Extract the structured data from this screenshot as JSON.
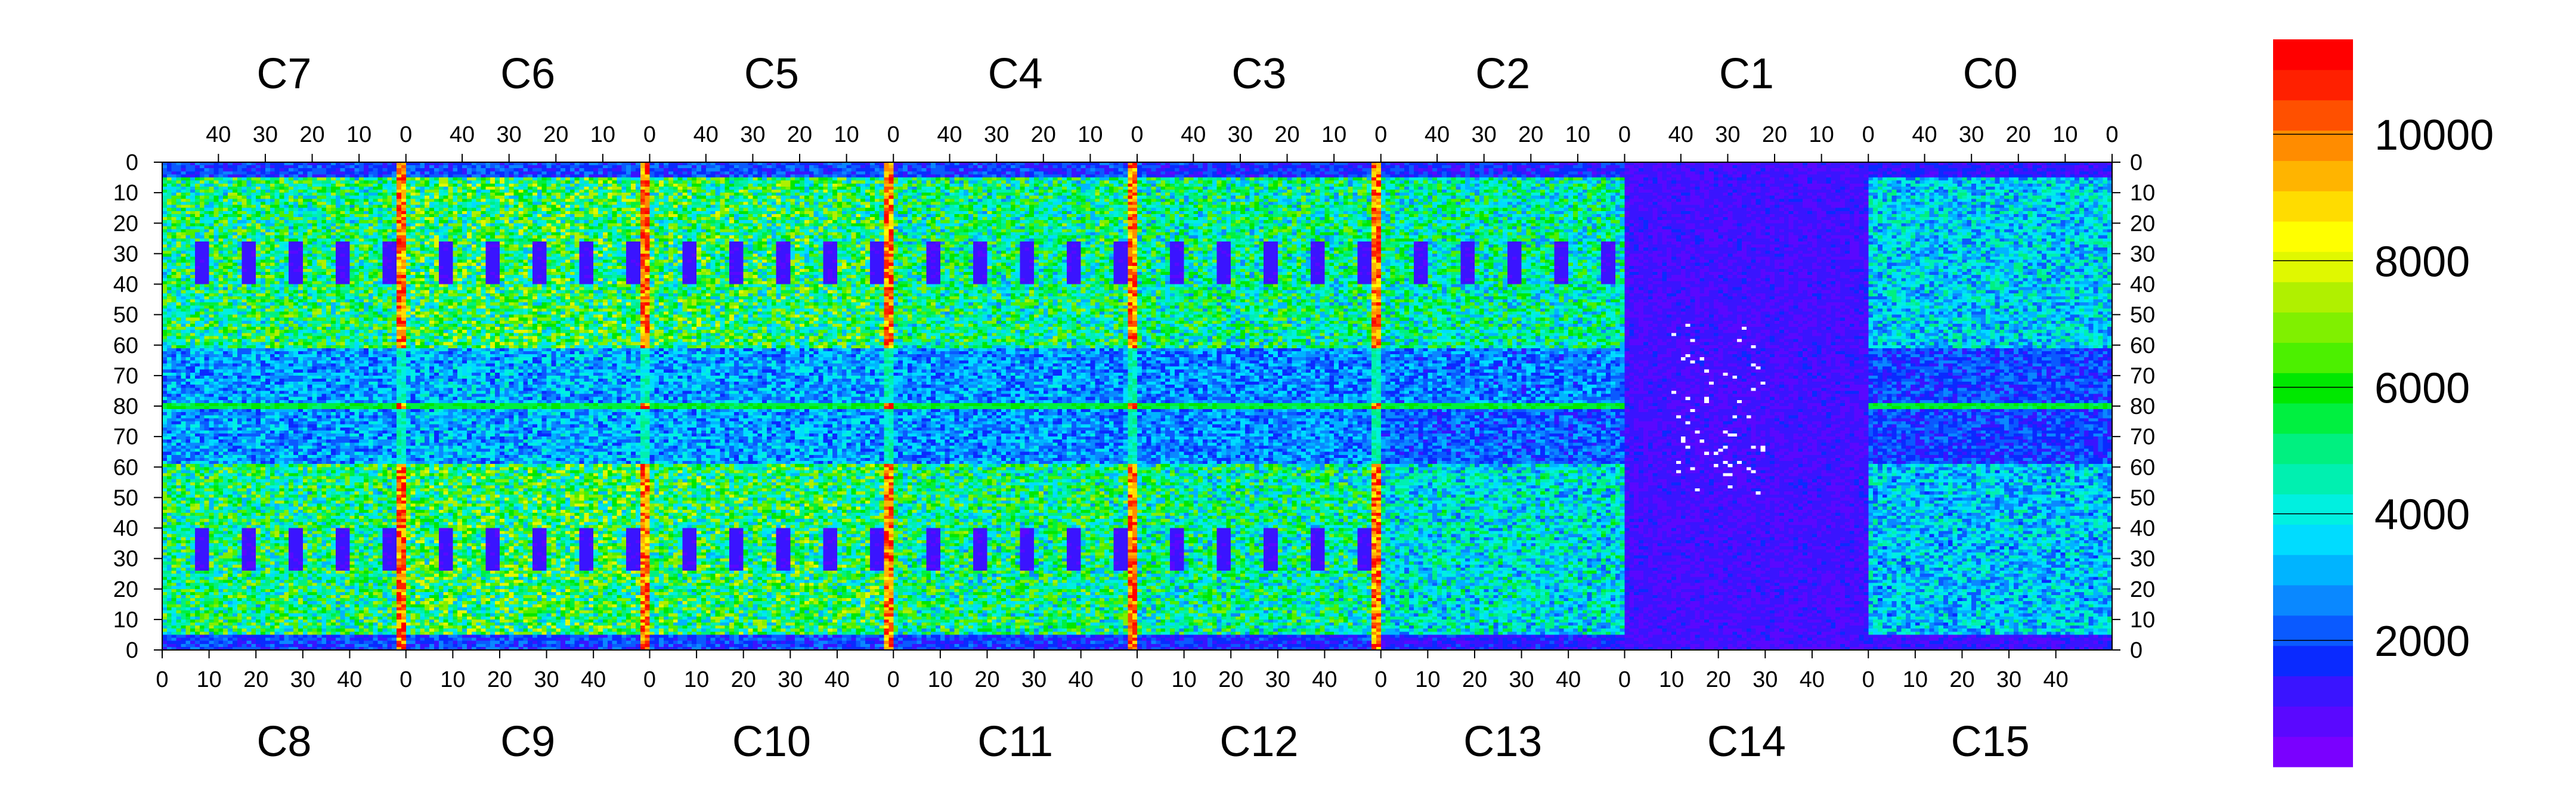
{
  "chart_data": {
    "type": "heatmap",
    "top_chip_labels": [
      "C7",
      "C6",
      "C5",
      "C4",
      "C3",
      "C2",
      "C1",
      "C0"
    ],
    "bottom_chip_labels": [
      "C8",
      "C9",
      "C10",
      "C11",
      "C12",
      "C13",
      "C14",
      "C15"
    ],
    "top_x_ticks": [
      "40",
      "30",
      "20",
      "10",
      "0"
    ],
    "bottom_x_ticks": [
      "0",
      "10",
      "20",
      "30",
      "40"
    ],
    "y_ticks": [
      "0",
      "10",
      "20",
      "30",
      "40",
      "50",
      "60",
      "70",
      "80",
      "70",
      "60",
      "50",
      "40",
      "30",
      "20",
      "10",
      "0"
    ],
    "y_tick_values": [
      0,
      10,
      20,
      30,
      40,
      50,
      60,
      70,
      80,
      90,
      100,
      110,
      120,
      130,
      140,
      150,
      160
    ],
    "chip_columns": 52,
    "row_count": 160,
    "colorbar": {
      "zmin": 0,
      "zmax": 11500,
      "ticks": [
        2000,
        4000,
        6000,
        8000,
        10000
      ],
      "tick_labels": [
        "2000",
        "4000",
        "6000",
        "8000",
        "10000"
      ]
    },
    "colors": [
      "#7a00ff",
      "#5a08ff",
      "#3a14ff",
      "#0a2aff",
      "#0a5aff",
      "#0a88ff",
      "#00b4ff",
      "#00dcff",
      "#00f0e0",
      "#00f0b0",
      "#00f080",
      "#00f040",
      "#00e800",
      "#4cf000",
      "#80f000",
      "#b0f000",
      "#e0f800",
      "#ffff00",
      "#ffdc00",
      "#ffb400",
      "#ff8c00",
      "#ff5000",
      "#ff2000",
      "#ff0000"
    ],
    "chip_mean_levels": {
      "C7": 5200,
      "C6": 5600,
      "C5": 5400,
      "C4": 5000,
      "C3": 4800,
      "C2": 4600,
      "C1": 1600,
      "C0": 3600,
      "C8": 5200,
      "C9": 5600,
      "C10": 5400,
      "C11": 5000,
      "C12": 4800,
      "C13": 4000,
      "C14": 1200,
      "C15": 3400
    },
    "hot_columns_level": 10500,
    "dead_pixel_level": 0
  }
}
